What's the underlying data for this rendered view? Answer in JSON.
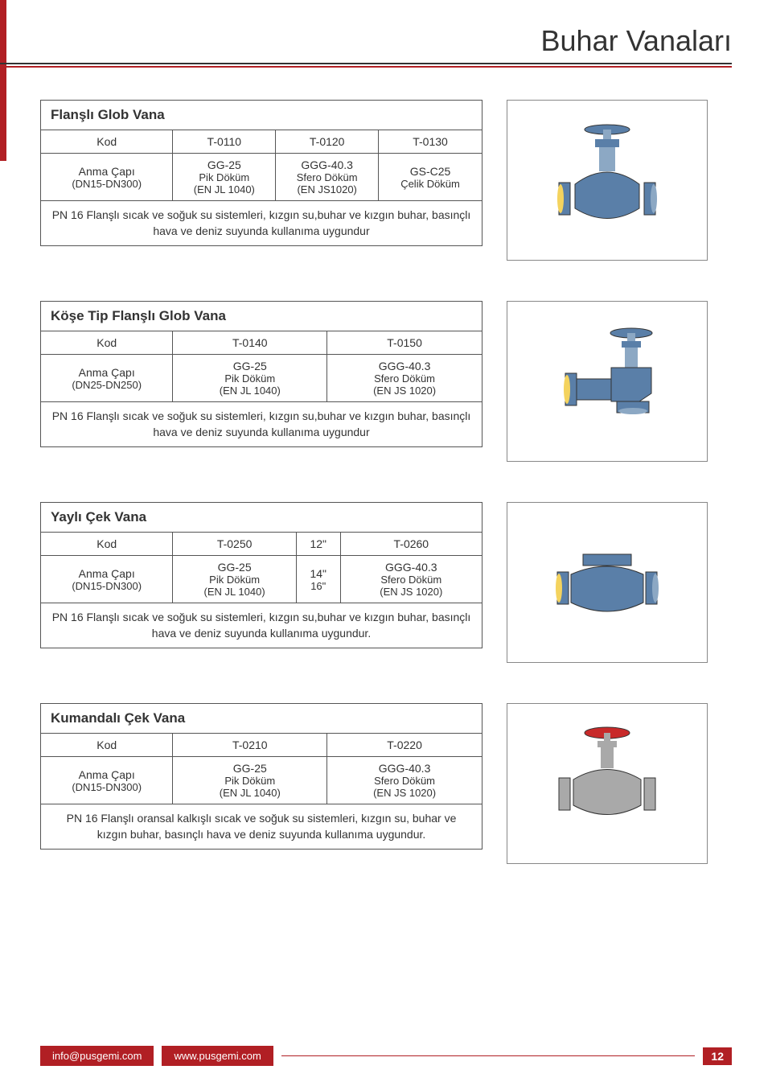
{
  "page": {
    "title": "Buhar Vanaları",
    "number": "12",
    "email": "info@pusgemi.com",
    "website": "www.pusgemi.com"
  },
  "sections": [
    {
      "title": "Flanşlı Glob Vana",
      "header": [
        "Kod",
        "T-0110",
        "T-0120",
        "T-0130"
      ],
      "row2": [
        {
          "l1": "Anma Çapı",
          "l2": "(DN15-DN300)"
        },
        {
          "l1": "GG-25",
          "l2": "Pik Döküm",
          "l3": "(EN JL 1040)"
        },
        {
          "l1": "GGG-40.3",
          "l2": "Sfero Döküm",
          "l3": "(EN JS1020)"
        },
        {
          "l1": "GS-C25",
          "l2": "Çelik Döküm"
        }
      ],
      "desc": "PN 16 Flanşlı sıcak ve soğuk su sistemleri, kızgın su,buhar ve kızgın buhar, basınçlı hava ve deniz suyunda kullanıma uygundur",
      "image_type": "globe"
    },
    {
      "title": "Köşe Tip Flanşlı Glob Vana",
      "header": [
        "Kod",
        "T-0140",
        "T-0150"
      ],
      "row2": [
        {
          "l1": "Anma Çapı",
          "l2": "(DN25-DN250)"
        },
        {
          "l1": "GG-25",
          "l2": "Pik Döküm",
          "l3": "(EN JL 1040)"
        },
        {
          "l1": "GGG-40.3",
          "l2": "Sfero Döküm",
          "l3": "(EN JS 1020)"
        }
      ],
      "desc": "PN 16 Flanşlı sıcak ve soğuk su sistemleri, kızgın su,buhar ve kızgın buhar, basınçlı hava ve deniz suyunda kullanıma uygundur",
      "image_type": "angle"
    },
    {
      "title": "Yaylı Çek Vana",
      "header": [
        "Kod",
        "T-0250",
        "12\"",
        "T-0260"
      ],
      "row2": [
        {
          "l1": "Anma Çapı",
          "l2": "(DN15-DN300)"
        },
        {
          "l1": "GG-25",
          "l2": "Pik Döküm",
          "l3": "(EN JL 1040)"
        },
        {
          "l1": "14\"",
          "l2": "16\""
        },
        {
          "l1": "GGG-40.3",
          "l2": "Sfero Döküm",
          "l3": "(EN JS 1020)"
        }
      ],
      "desc": "PN 16 Flanşlı sıcak ve soğuk su sistemleri, kızgın su,buhar ve kızgın buhar, basınçlı hava ve deniz suyunda kullanıma uygundur.",
      "image_type": "check"
    },
    {
      "title": "Kumandalı Çek Vana",
      "header": [
        "Kod",
        "T-0210",
        "T-0220"
      ],
      "row2": [
        {
          "l1": "Anma Çapı",
          "l2": "(DN15-DN300)"
        },
        {
          "l1": "GG-25",
          "l2": "Pik Döküm",
          "l3": "(EN JL 1040)"
        },
        {
          "l1": "GGG-40.3",
          "l2": "Sfero Döküm",
          "l3": "(EN JS 1020)"
        }
      ],
      "desc": "PN 16 Flanşlı oransal kalkışlı sıcak ve soğuk su sistemleri, kızgın su, buhar ve kızgın buhar, basınçlı hava ve deniz suyunda kullanıma uygundur.",
      "image_type": "control"
    }
  ],
  "svg": {
    "blue": "#5a7fa8",
    "lightblue": "#8ca8c4",
    "yellow": "#f4d35e",
    "grey": "#a9a9a9",
    "red": "#c82a2a",
    "dark": "#333"
  }
}
